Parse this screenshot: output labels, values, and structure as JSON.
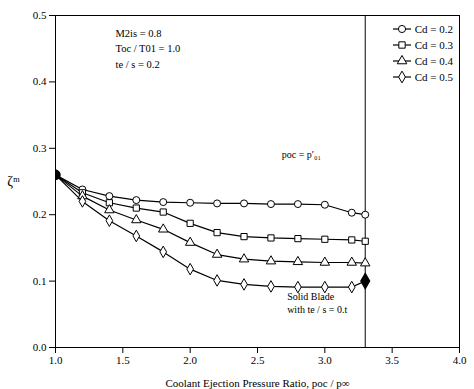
{
  "chart_data": {
    "type": "line",
    "xlabel": "Coolant Ejection Pressure Ratio, poc / p∞",
    "ylabel": "ζᵐ",
    "xlim": [
      1.0,
      4.0
    ],
    "ylim": [
      0.0,
      0.5
    ],
    "xticks": [
      {
        "value": 1.0,
        "label": "1.0"
      },
      1.5,
      {
        "value": 2.0,
        "label": "2.0"
      },
      2.5,
      {
        "value": 3.0,
        "label": "3.0"
      },
      3.5,
      {
        "value": 4.0,
        "label": "4.0"
      }
    ],
    "yticks": [
      {
        "value": 0.0,
        "label": "0.0"
      },
      0.1,
      0.2,
      0.3,
      0.4,
      0.5
    ],
    "grid": false,
    "legend": "upper right",
    "x": [
      1.0,
      1.2,
      1.4,
      1.6,
      1.8,
      2.0,
      2.2,
      2.4,
      2.6,
      2.8,
      3.0,
      3.2,
      3.3
    ],
    "series": [
      {
        "name": "Cd = 0.2",
        "color": "#000000",
        "marker": "circle",
        "values": [
          0.26,
          0.238,
          0.228,
          0.222,
          0.219,
          0.218,
          0.217,
          0.217,
          0.216,
          0.216,
          0.215,
          0.203,
          0.2
        ]
      },
      {
        "name": "Cd = 0.3",
        "color": "#000000",
        "marker": "square",
        "values": [
          0.26,
          0.233,
          0.218,
          0.21,
          0.204,
          0.187,
          0.173,
          0.167,
          0.165,
          0.164,
          0.163,
          0.162,
          0.16
        ]
      },
      {
        "name": "Cd = 0.4",
        "color": "#000000",
        "marker": "triangle",
        "values": [
          0.26,
          0.228,
          0.207,
          0.192,
          0.178,
          0.158,
          0.14,
          0.133,
          0.13,
          0.129,
          0.128,
          0.128,
          0.127
        ]
      },
      {
        "name": "Cd = 0.5",
        "color": "#000000",
        "marker": "diamond",
        "values": [
          0.26,
          0.22,
          0.191,
          0.168,
          0.144,
          0.118,
          0.101,
          0.095,
          0.092,
          0.091,
          0.091,
          0.091,
          0.1
        ]
      }
    ],
    "points": [
      {
        "x": 3.3,
        "y": 0.1,
        "marker": "diamond",
        "color": "#000000"
      },
      {
        "x": 1.0,
        "y": 0.26,
        "marker": "circle",
        "color": "#000000"
      }
    ],
    "vline": 3.3,
    "annotations": [
      {
        "text": "poc = p′₀₁",
        "x": 2.68,
        "y": 0.285
      },
      {
        "text": "Solid Blade\nwith te / s = 0.t",
        "x": 2.72,
        "y": 0.085
      },
      {
        "text": "M2is = 0.8\nToc / T01 = 1.0\nte / s = 0.2"
      }
    ]
  }
}
